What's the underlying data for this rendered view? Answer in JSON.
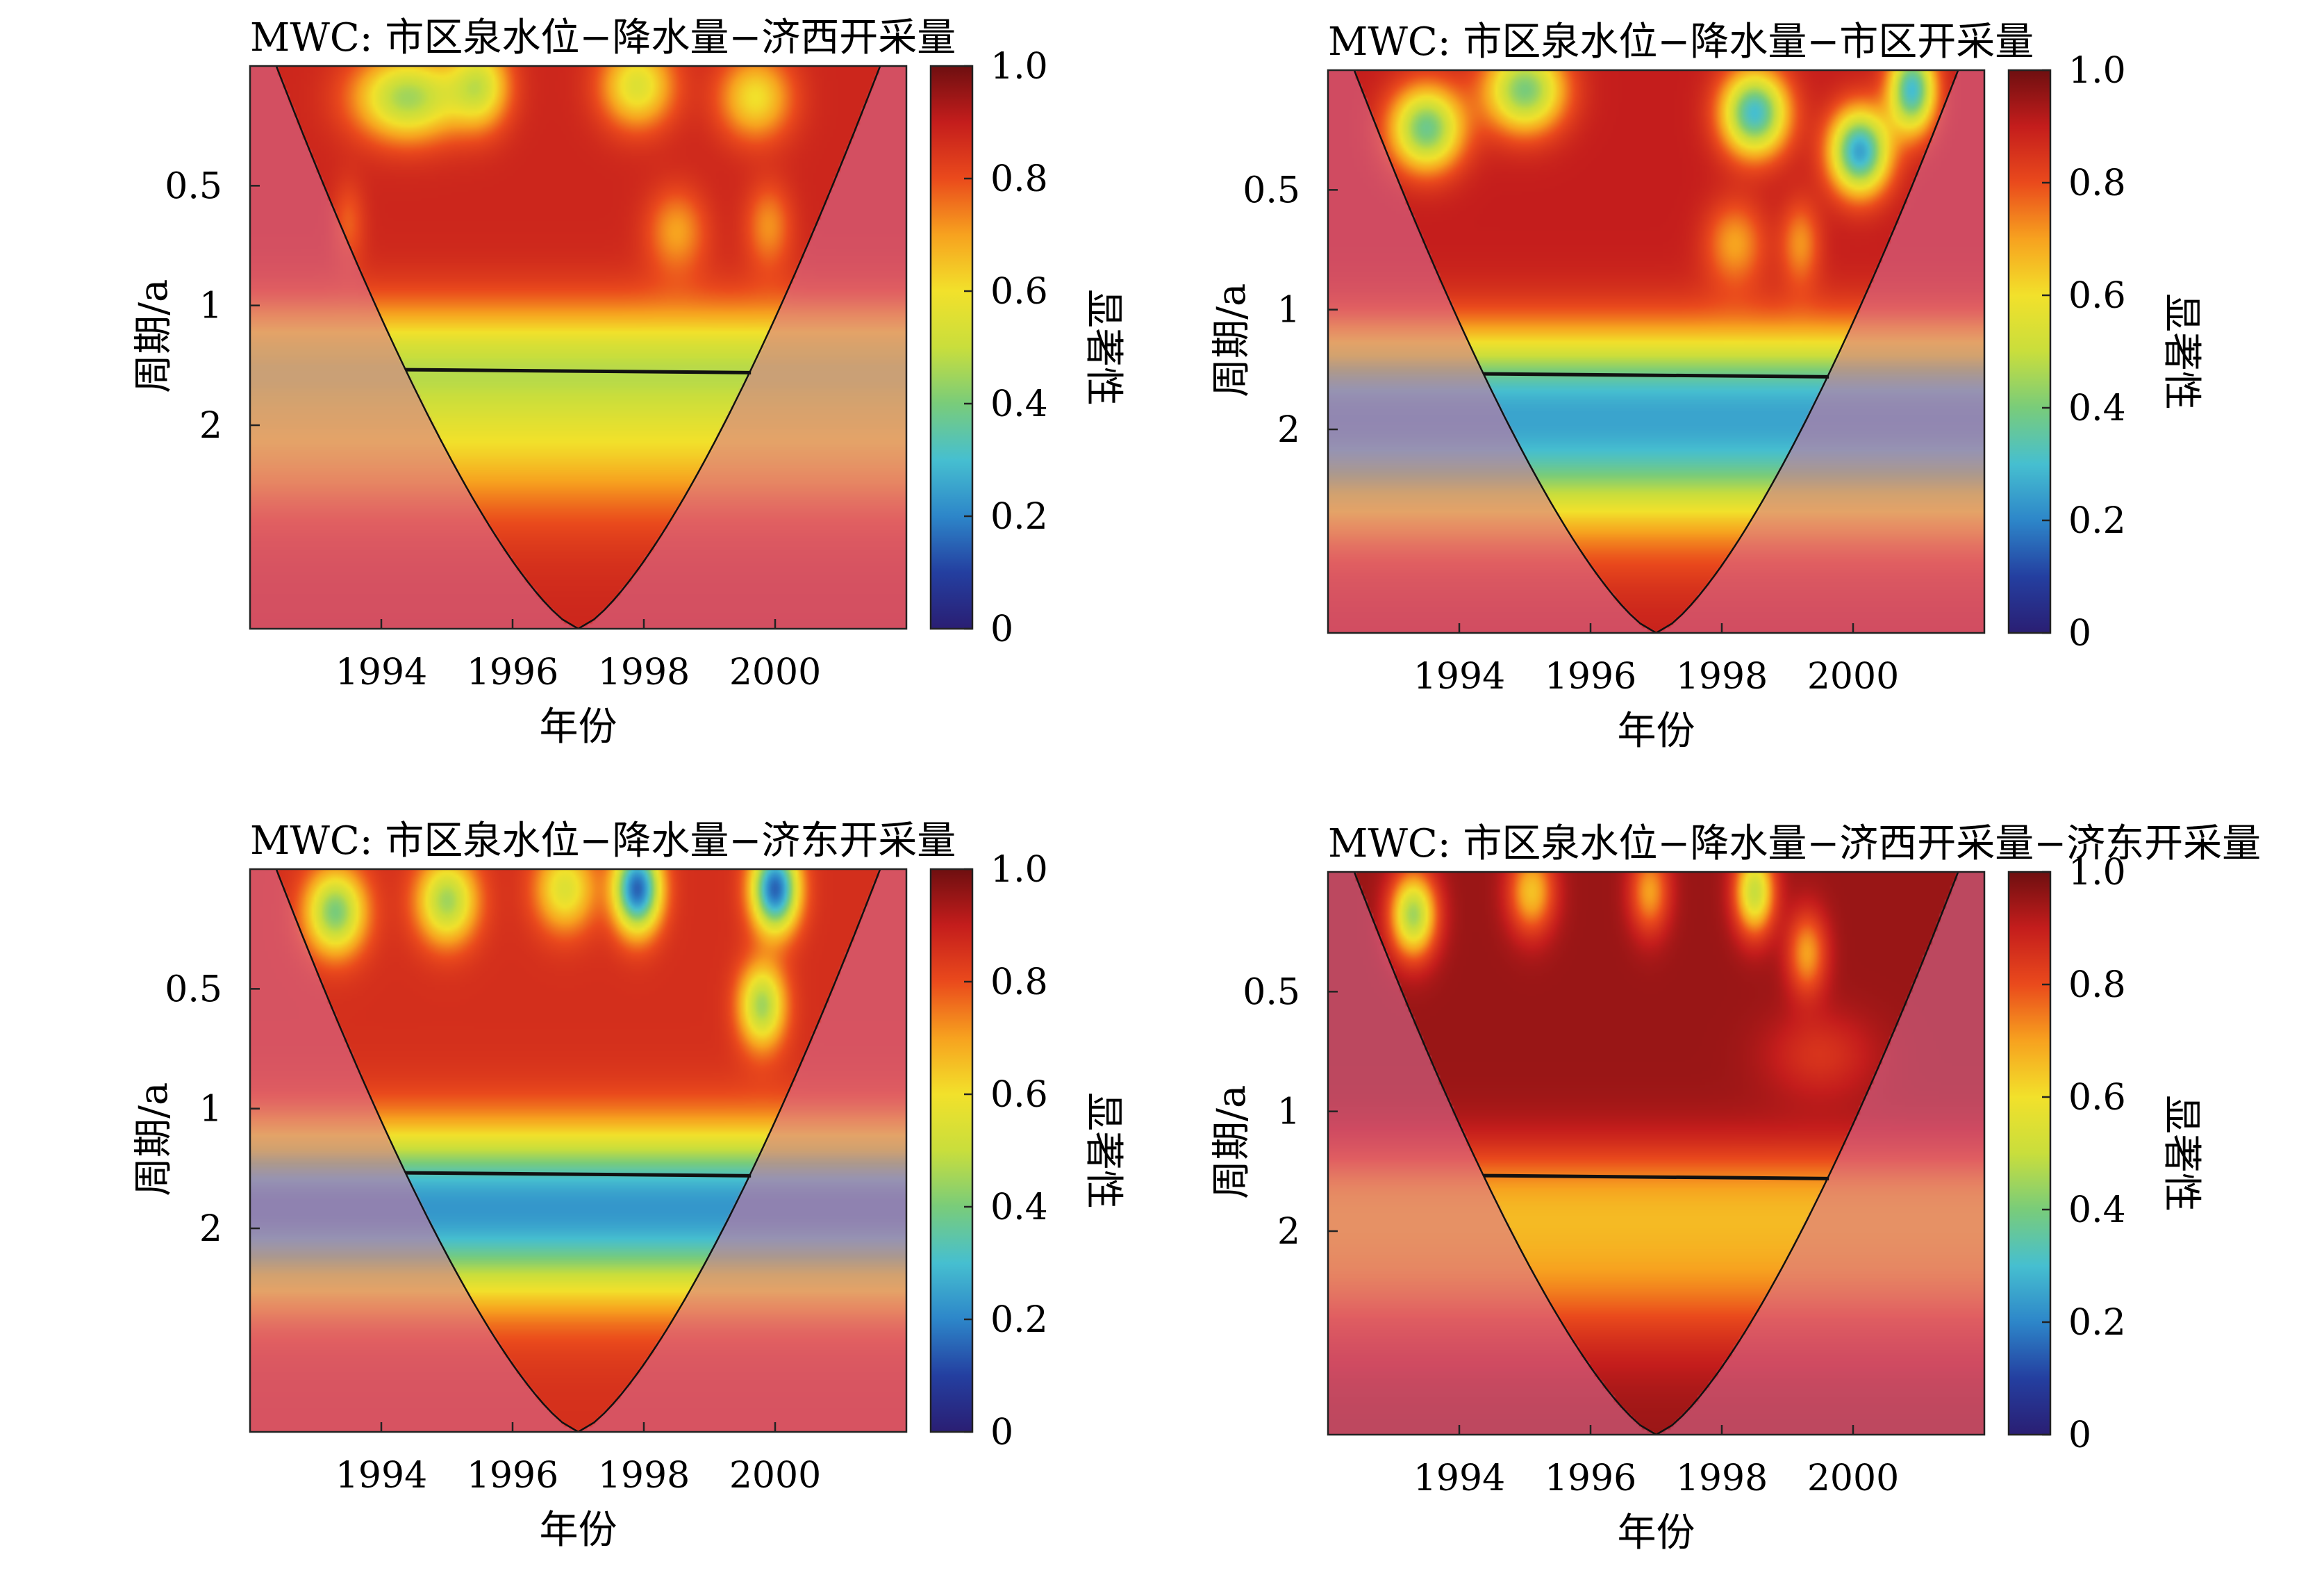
{
  "colorbar": {
    "ticks": [
      "0",
      "0.2",
      "0.4",
      "0.6",
      "0.8",
      "1.0"
    ],
    "label": "显著性",
    "stops": [
      "#2a1e73",
      "#243fa0",
      "#2d86c9",
      "#46bfd0",
      "#79cc7a",
      "#c9de3c",
      "#f2e12b",
      "#f7a21f",
      "#ea4a1c",
      "#c41d1c",
      "#6e0f10"
    ]
  },
  "cone_tint_color": "#d9709a",
  "contour_color": "#111111",
  "panels": [
    {
      "title": "MWC: 市区泉水位−降水量−济西开采量",
      "xlabel": "年份",
      "ylabel": "周期/a",
      "xticks": [
        "1994",
        "1996",
        "1998",
        "2000"
      ],
      "yticks": [
        "0.5",
        "1",
        "2"
      ]
    },
    {
      "title": "MWC: 市区泉水位−降水量−市区开采量",
      "xlabel": "年份",
      "ylabel": "周期/a",
      "xticks": [
        "1994",
        "1996",
        "1998",
        "2000"
      ],
      "yticks": [
        "0.5",
        "1",
        "2"
      ]
    },
    {
      "title": "MWC: 市区泉水位−降水量−济东开采量",
      "xlabel": "年份",
      "ylabel": "周期/a",
      "xticks": [
        "1994",
        "1996",
        "1998",
        "2000"
      ],
      "yticks": [
        "0.5",
        "1",
        "2"
      ]
    },
    {
      "title": "MWC: 市区泉水位−降水量−济西开采量−济东开采量",
      "xlabel": "年份",
      "ylabel": "周期/a",
      "xticks": [
        "1994",
        "1996",
        "1998",
        "2000"
      ],
      "yticks": [
        "0.5",
        "1",
        "2"
      ]
    }
  ],
  "chart_data": [
    {
      "type": "heatmap",
      "title": "MWC: 市区泉水位−降水量−济西开采量",
      "xlabel": "年份",
      "ylabel": "周期/a",
      "xlim": [
        1992.0,
        2002.0
      ],
      "ylim_log2": [
        -2.0,
        2.7
      ],
      "xticks": [
        1994,
        1996,
        1998,
        2000
      ],
      "yticks": [
        0.5,
        1,
        2
      ],
      "colorbar": {
        "label": "显著性",
        "range": [
          0,
          1
        ],
        "ticks": [
          0,
          0.2,
          0.4,
          0.6,
          0.8,
          1.0
        ]
      },
      "base": 0.88,
      "bands": [
        {
          "p": 1.4,
          "w": 0.5,
          "v": 0.52
        },
        {
          "p": 2.2,
          "w": 0.5,
          "v": 0.7
        },
        {
          "p": 3.0,
          "w": 0.6,
          "v": 0.82
        }
      ],
      "blobs": [
        {
          "t": 1994.4,
          "p": 0.3,
          "s": 0.8,
          "v": 0.45
        },
        {
          "t": 1995.5,
          "p": 0.28,
          "s": 0.45,
          "v": 0.55
        },
        {
          "t": 1997.9,
          "p": 0.28,
          "s": 0.55,
          "v": 0.55
        },
        {
          "t": 1999.7,
          "p": 0.3,
          "s": 0.55,
          "v": 0.6
        },
        {
          "t": 1993.5,
          "p": 0.62,
          "s": 0.25,
          "v": 0.78
        },
        {
          "t": 1998.5,
          "p": 0.65,
          "s": 0.45,
          "v": 0.7
        },
        {
          "t": 1999.9,
          "p": 0.63,
          "s": 0.35,
          "v": 0.72
        }
      ]
    },
    {
      "type": "heatmap",
      "title": "MWC: 市区泉水位−降水量−市区开采量",
      "xlabel": "年份",
      "ylabel": "周期/a",
      "xlim": [
        1992.0,
        2002.0
      ],
      "ylim_log2": [
        -2.0,
        2.7
      ],
      "xticks": [
        1994,
        1996,
        1998,
        2000
      ],
      "yticks": [
        0.5,
        1,
        2
      ],
      "colorbar": {
        "label": "显著性",
        "range": [
          0,
          1
        ],
        "ticks": [
          0,
          0.2,
          0.4,
          0.6,
          0.8,
          1.0
        ]
      },
      "base": 0.9,
      "bands": [
        {
          "p": 1.6,
          "w": 0.55,
          "v": 0.4
        },
        {
          "p": 2.4,
          "w": 0.5,
          "v": 0.62
        },
        {
          "p": 3.0,
          "w": 0.7,
          "v": 0.75
        }
      ],
      "blobs": [
        {
          "t": 1993.5,
          "p": 0.35,
          "s": 0.55,
          "v": 0.38
        },
        {
          "t": 1995.0,
          "p": 0.28,
          "s": 0.6,
          "v": 0.4
        },
        {
          "t": 1998.5,
          "p": 0.32,
          "s": 0.5,
          "v": 0.3
        },
        {
          "t": 2000.1,
          "p": 0.4,
          "s": 0.45,
          "v": 0.25
        },
        {
          "t": 2000.9,
          "p": 0.28,
          "s": 0.35,
          "v": 0.3
        },
        {
          "t": 1998.2,
          "p": 0.68,
          "s": 0.45,
          "v": 0.7
        },
        {
          "t": 1999.2,
          "p": 0.68,
          "s": 0.3,
          "v": 0.72
        }
      ]
    },
    {
      "type": "heatmap",
      "title": "MWC: 市区泉水位−降水量−济东开采量",
      "xlabel": "年份",
      "ylabel": "周期/a",
      "xlim": [
        1992.0,
        2002.0
      ],
      "ylim_log2": [
        -2.0,
        2.7
      ],
      "xticks": [
        1994,
        1996,
        1998,
        2000
      ],
      "yticks": [
        0.5,
        1,
        2
      ],
      "colorbar": {
        "label": "显著性",
        "range": [
          0,
          1
        ],
        "ticks": [
          0,
          0.2,
          0.4,
          0.6,
          0.8,
          1.0
        ]
      },
      "base": 0.86,
      "bands": [
        {
          "p": 1.6,
          "w": 0.55,
          "v": 0.35
        },
        {
          "p": 2.3,
          "w": 0.5,
          "v": 0.6
        },
        {
          "p": 3.0,
          "w": 0.6,
          "v": 0.82
        }
      ],
      "blobs": [
        {
          "t": 1993.3,
          "p": 0.32,
          "s": 0.45,
          "v": 0.4
        },
        {
          "t": 1995.0,
          "p": 0.3,
          "s": 0.45,
          "v": 0.45
        },
        {
          "t": 1996.8,
          "p": 0.28,
          "s": 0.45,
          "v": 0.55
        },
        {
          "t": 1997.9,
          "p": 0.28,
          "s": 0.35,
          "v": 0.15
        },
        {
          "t": 2000.0,
          "p": 0.28,
          "s": 0.35,
          "v": 0.15
        },
        {
          "t": 1999.8,
          "p": 0.55,
          "s": 0.35,
          "v": 0.45
        }
      ]
    },
    {
      "type": "heatmap",
      "title": "MWC: 市区泉水位−降水量−济西开采量−济东开采量",
      "xlabel": "年份",
      "ylabel": "周期/a",
      "xlim": [
        1992.0,
        2002.0
      ],
      "ylim_log2": [
        -2.0,
        2.7
      ],
      "xticks": [
        1994,
        1996,
        1998,
        2000
      ],
      "yticks": [
        0.5,
        1,
        2
      ],
      "colorbar": {
        "label": "显著性",
        "range": [
          0,
          1
        ],
        "ticks": [
          0,
          0.2,
          0.4,
          0.6,
          0.8,
          1.0
        ]
      },
      "base": 0.95,
      "bands": [
        {
          "p": 1.6,
          "w": 0.45,
          "v": 0.75
        },
        {
          "p": 2.3,
          "w": 0.5,
          "v": 0.8
        },
        {
          "p": 3.0,
          "w": 0.6,
          "v": 0.85
        }
      ],
      "blobs": [
        {
          "t": 1993.3,
          "p": 0.32,
          "s": 0.35,
          "v": 0.45
        },
        {
          "t": 1995.1,
          "p": 0.28,
          "s": 0.35,
          "v": 0.65
        },
        {
          "t": 1996.9,
          "p": 0.28,
          "s": 0.3,
          "v": 0.7
        },
        {
          "t": 1998.5,
          "p": 0.28,
          "s": 0.3,
          "v": 0.5
        },
        {
          "t": 1999.3,
          "p": 0.4,
          "s": 0.3,
          "v": 0.7
        },
        {
          "t": 1999.5,
          "p": 0.72,
          "s": 0.8,
          "v": 0.85
        }
      ]
    }
  ]
}
